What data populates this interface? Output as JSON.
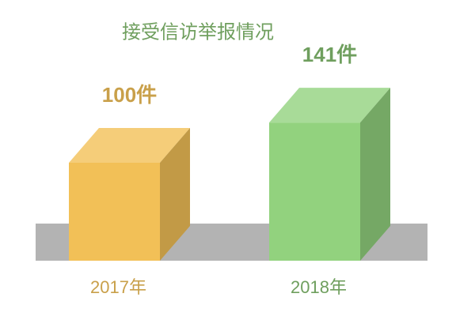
{
  "chart_data": {
    "type": "bar3d",
    "title": "接受信访举报情况",
    "categories": [
      "2017年",
      "2018年"
    ],
    "values": [
      100,
      141
    ],
    "value_labels": [
      "100件",
      "141件"
    ],
    "colors": [
      "#f2c057",
      "#92d27e"
    ],
    "label_colors": [
      "#c9a04a",
      "#6f9f5e"
    ]
  }
}
